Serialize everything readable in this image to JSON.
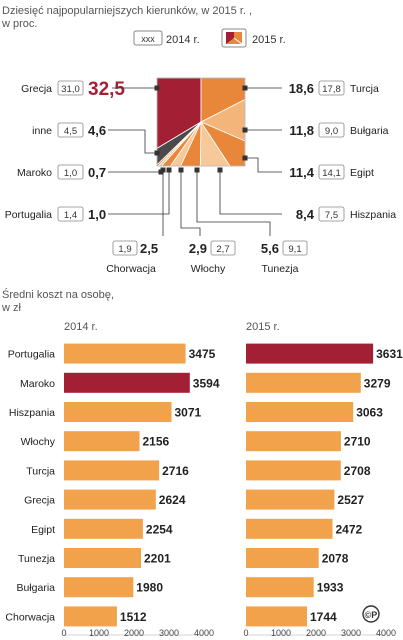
{
  "pie": {
    "title_line1": "Dziesięć najpopularniejszych kierunków, w 2015 r. ,",
    "title_line2": "w proc.",
    "legend": {
      "box_2014_text": "xxx",
      "label_2014": "2014 r.",
      "label_2015": "2015 r."
    }
  },
  "cost": {
    "title_line1": "Średni koszt na osobę,",
    "title_line2": "w zł",
    "label_2014": "2014 r.",
    "label_2015": "2015 r.",
    "logo_text": "©P"
  },
  "colors": {
    "highlight": "#a31f34",
    "orange": "#e8873a",
    "orange_light": "#f3b57a",
    "orange_pale": "#f6c89a",
    "dark_gray": "#4a4a4a",
    "text_gray": "#555555",
    "bar_2014": "#f2a24a",
    "bar_2015": "#f2a24a"
  },
  "chart_data": [
    {
      "type": "pie",
      "unit": "%",
      "entries": [
        {
          "name": "Grecja",
          "v2014": "31,0",
          "v2015": "32,5",
          "value": 32.5
        },
        {
          "name": "Turcja",
          "v2014": "17,8",
          "v2015": "18,6",
          "value": 18.6
        },
        {
          "name": "Bułgaria",
          "v2014": "9,0",
          "v2015": "11,8",
          "value": 11.8
        },
        {
          "name": "Egipt",
          "v2014": "14,1",
          "v2015": "11,4",
          "value": 11.4
        },
        {
          "name": "Hiszpania",
          "v2014": "7,5",
          "v2015": "8,4",
          "value": 8.4
        },
        {
          "name": "Tunezja",
          "v2014": "9,1",
          "v2015": "5,6",
          "value": 5.6
        },
        {
          "name": "Włochy",
          "v2014": "2,7",
          "v2015": "2,9",
          "value": 2.9
        },
        {
          "name": "Chorwacja",
          "v2014": "1,9",
          "v2015": "2,5",
          "value": 2.5
        },
        {
          "name": "Portugalia",
          "v2014": "1,4",
          "v2015": "1,0",
          "value": 1.0
        },
        {
          "name": "Maroko",
          "v2014": "1,0",
          "v2015": "0,7",
          "value": 0.7
        },
        {
          "name": "inne",
          "v2014": "4,5",
          "v2015": "4,6",
          "value": 4.6
        }
      ]
    },
    {
      "type": "bar",
      "orientation": "horizontal",
      "title": "2014 r.",
      "xlim": [
        0,
        4000
      ],
      "ticks": [
        0,
        1000,
        2000,
        3000,
        4000
      ],
      "categories": [
        "Portugalia",
        "Maroko",
        "Hiszpania",
        "Włochy",
        "Turcja",
        "Grecja",
        "Egipt",
        "Tunezja",
        "Bułgaria",
        "Chorwacja"
      ],
      "values": [
        3475,
        3594,
        3071,
        2156,
        2716,
        2624,
        2254,
        2201,
        1980,
        1512
      ],
      "highlight_index": 1
    },
    {
      "type": "bar",
      "orientation": "horizontal",
      "title": "2015 r.",
      "xlim": [
        0,
        4000
      ],
      "ticks": [
        0,
        1000,
        2000,
        3000,
        4000
      ],
      "categories": [
        "Portugalia",
        "Maroko",
        "Hiszpania",
        "Włochy",
        "Turcja",
        "Grecja",
        "Egipt",
        "Tunezja",
        "Bułgaria",
        "Chorwacja"
      ],
      "values": [
        3631,
        3279,
        3063,
        2710,
        2708,
        2527,
        2472,
        2078,
        1933,
        1744
      ],
      "highlight_index": 0
    }
  ]
}
